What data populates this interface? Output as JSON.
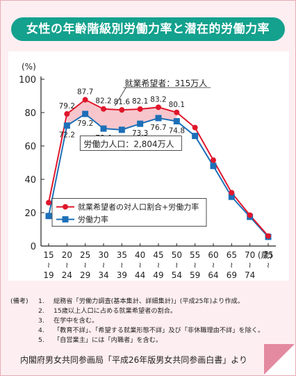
{
  "title": "女性の年齢階級別労働力率と潜在的労働力率",
  "chart_data": {
    "type": "line",
    "y_unit": "(%)",
    "x_unit": "(歳)",
    "ylim": [
      0,
      100
    ],
    "yticks": [
      0,
      20,
      40,
      60,
      80,
      100
    ],
    "categories": [
      {
        "from": "15",
        "to": "19"
      },
      {
        "from": "20",
        "to": "24"
      },
      {
        "from": "25",
        "to": "29"
      },
      {
        "from": "30",
        "to": "34"
      },
      {
        "from": "35",
        "to": "39"
      },
      {
        "from": "40",
        "to": "44"
      },
      {
        "from": "45",
        "to": "49"
      },
      {
        "from": "50",
        "to": "54"
      },
      {
        "from": "55",
        "to": "59"
      },
      {
        "from": "60",
        "to": "64"
      },
      {
        "from": "65",
        "to": "69"
      },
      {
        "from": "70",
        "to": "74"
      },
      {
        "from": "75",
        "to": ""
      }
    ],
    "series": [
      {
        "name": "就業希望者の対人口割合+労働力率",
        "color": "#e0162b",
        "marker": "circle",
        "values": [
          26.0,
          79.2,
          87.7,
          82.2,
          81.6,
          82.1,
          83.2,
          80.1,
          71.0,
          51.5,
          32.0,
          18.5,
          6.0
        ],
        "labels": [
          "",
          "79.2",
          "87.7",
          "82.2",
          "81.6",
          "82.1",
          "83.2",
          "80.1",
          "",
          "",
          "",
          "",
          ""
        ]
      },
      {
        "name": "労働力率",
        "color": "#1d6fb8",
        "marker": "square",
        "values": [
          18.0,
          72.2,
          79.2,
          70.4,
          69.7,
          73.3,
          76.7,
          74.8,
          66.0,
          48.0,
          29.5,
          17.5,
          5.5
        ],
        "labels": [
          "",
          "72.2",
          "79.2",
          "70.4",
          "69.7",
          "73.3",
          "76.7",
          "74.8",
          "",
          "",
          "",
          "",
          ""
        ]
      }
    ],
    "fill_color": "#f6c6cc",
    "annotations": [
      {
        "id": "kibou",
        "text": "就業希望者：315万人"
      },
      {
        "id": "jinkou",
        "text": "労働力人口：2,804万人"
      }
    ],
    "legend_placement": "bottom-left"
  },
  "notes": {
    "head": "(備考)",
    "items": [
      {
        "num": "1.",
        "text": "総務省「労働力調査(基本集計、詳細集計)」(平成25年)より作成。"
      },
      {
        "num": "2.",
        "text": "15歳以上人口に占める就業希望者の割合。"
      },
      {
        "num": "3.",
        "text": "在学中を含む。"
      },
      {
        "num": "4.",
        "text": "「教育不詳」、「希望する就業形態不詳」及び「非休職理由不詳」を除く。"
      },
      {
        "num": "5.",
        "text": "「自営業主」には「内職者」を含む。"
      }
    ]
  },
  "source": "内閣府男女共同参画局「平成26年版男女共同参画白書」より"
}
